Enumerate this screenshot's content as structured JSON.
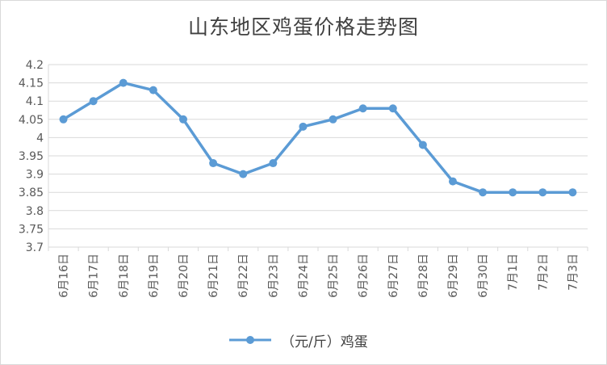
{
  "chart_data": {
    "type": "line",
    "title": "山东地区鸡蛋价格走势图",
    "categories": [
      "6月16日",
      "6月17日",
      "6月18日",
      "6月19日",
      "6月20日",
      "6月21日",
      "6月22日",
      "6月23日",
      "6月24日",
      "6月25日",
      "6月26日",
      "6月27日",
      "6月28日",
      "6月29日",
      "6月30日",
      "7月1日",
      "7月2日",
      "7月3日"
    ],
    "series": [
      {
        "name": "（元/斤）鸡蛋",
        "values": [
          4.05,
          4.1,
          4.15,
          4.13,
          4.05,
          3.93,
          3.9,
          3.93,
          4.03,
          4.05,
          4.08,
          4.08,
          3.98,
          3.88,
          3.85,
          3.85,
          3.85,
          3.85
        ]
      }
    ],
    "ylim": [
      3.7,
      4.2
    ],
    "yticks": [
      "3.7",
      "3.75",
      "3.8",
      "3.85",
      "3.9",
      "3.95",
      "4",
      "4.05",
      "4.1",
      "4.15",
      "4.2"
    ],
    "grid": true,
    "legend_position": "bottom",
    "line_color": "#5b9bd5"
  }
}
